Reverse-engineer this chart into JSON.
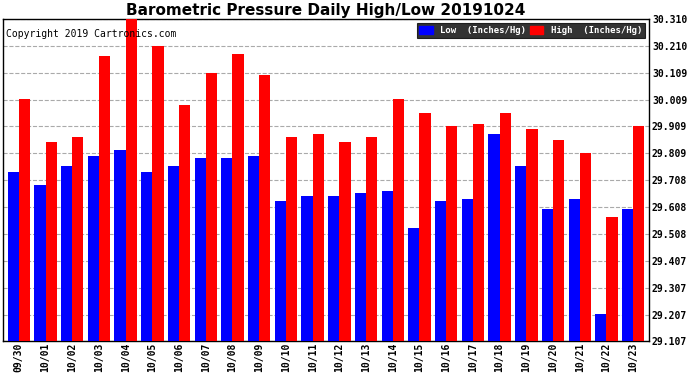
{
  "title": "Barometric Pressure Daily High/Low 20191024",
  "copyright": "Copyright 2019 Cartronics.com",
  "dates": [
    "09/30",
    "10/01",
    "10/02",
    "10/03",
    "10/04",
    "10/05",
    "10/06",
    "10/07",
    "10/08",
    "10/09",
    "10/10",
    "10/11",
    "10/12",
    "10/13",
    "10/14",
    "10/15",
    "10/16",
    "10/17",
    "10/18",
    "10/19",
    "10/20",
    "10/21",
    "10/22",
    "10/23"
  ],
  "low_values": [
    29.74,
    29.69,
    29.76,
    29.8,
    29.82,
    29.74,
    29.76,
    29.79,
    29.79,
    29.8,
    29.63,
    29.65,
    29.65,
    29.66,
    29.67,
    29.53,
    29.63,
    29.64,
    29.88,
    29.76,
    29.6,
    29.64,
    29.21,
    29.6
  ],
  "high_values": [
    30.01,
    29.85,
    29.87,
    30.17,
    30.31,
    30.21,
    29.99,
    30.11,
    30.18,
    30.1,
    29.87,
    29.88,
    29.85,
    29.87,
    30.01,
    29.96,
    29.91,
    29.92,
    29.96,
    29.9,
    29.86,
    29.81,
    29.57,
    29.91
  ],
  "low_color": "#0000ff",
  "high_color": "#ff0000",
  "bg_color": "#ffffff",
  "grid_color": "#aaaaaa",
  "ylim_min": 29.107,
  "ylim_max": 30.31,
  "yticks": [
    29.107,
    29.207,
    29.307,
    29.407,
    29.508,
    29.608,
    29.708,
    29.809,
    29.909,
    30.009,
    30.109,
    30.21,
    30.31
  ],
  "title_fontsize": 11,
  "copyright_fontsize": 7,
  "bar_width": 0.42
}
